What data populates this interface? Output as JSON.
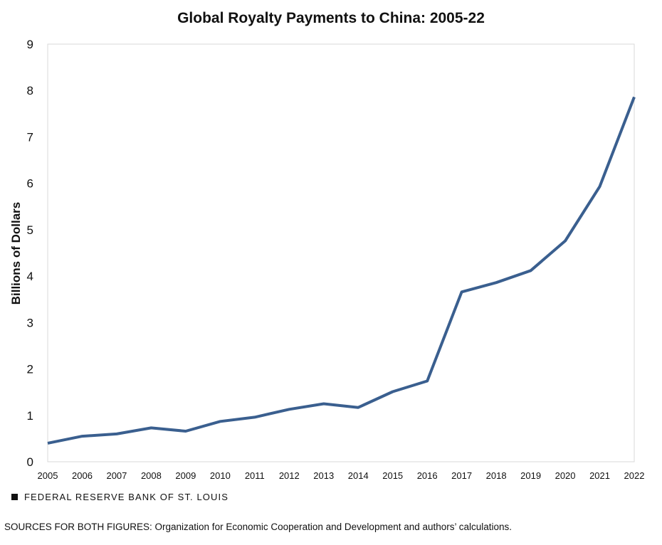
{
  "chart_data": {
    "type": "line",
    "title": "Global Royalty Payments to China: 2005-22",
    "xlabel": "",
    "ylabel": "Billions of Dollars",
    "x": [
      "2005",
      "2006",
      "2007",
      "2008",
      "2009",
      "2010",
      "2011",
      "2012",
      "2013",
      "2014",
      "2015",
      "2016",
      "2017",
      "2018",
      "2019",
      "2020",
      "2021",
      "2022"
    ],
    "series": [
      {
        "values": [
          0.4,
          0.55,
          0.6,
          0.73,
          0.66,
          0.87,
          0.96,
          1.13,
          1.25,
          1.17,
          1.51,
          1.74,
          3.66,
          3.86,
          4.12,
          4.76,
          5.93,
          7.86
        ],
        "color": "#3a5f8f"
      }
    ],
    "yticks": [
      "0",
      "1",
      "2",
      "3",
      "4",
      "5",
      "6",
      "7",
      "8",
      "9"
    ],
    "ylim": [
      0,
      9
    ],
    "grid": false,
    "legend": "none"
  },
  "footer": {
    "brand": "FEDERAL RESERVE BANK OF ST. LOUIS",
    "sources": "SOURCES FOR BOTH FIGURES: Organization for Economic Cooperation and Development and authors’ calculations."
  }
}
